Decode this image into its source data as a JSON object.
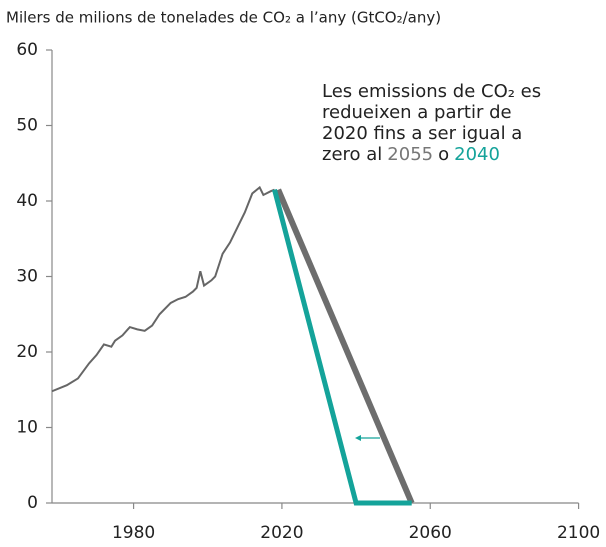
{
  "chart_data": {
    "type": "line",
    "title": "Milers de milions de tonelades de CO₂ a l’any (GtCO₂/any)",
    "annotation": {
      "lines": [
        "Les emissions de CO₂ es",
        "redueixen a partir de",
        "2020  fins a ser igual a"
      ],
      "last_line": [
        {
          "text": "zero al",
          "color": "#222222"
        },
        {
          "text": "2055",
          "color": "#777777"
        },
        {
          "text": "o",
          "color": "#222222"
        },
        {
          "text": "2040",
          "color": "#14a39a"
        }
      ]
    },
    "series": [
      {
        "color": "#666666",
        "line_width": 2,
        "x": [
          1958,
          1962,
          1965,
          1968,
          1970,
          1972,
          1974,
          1975,
          1977,
          1979,
          1981,
          1983,
          1985,
          1987,
          1990,
          1992,
          1994,
          1996,
          1997,
          1998,
          1999,
          2001,
          2002,
          2004,
          2006,
          2008,
          2010,
          2012,
          2014,
          2015,
          2017,
          2018
        ],
        "values": [
          14.8,
          15.6,
          16.5,
          18.5,
          19.6,
          21,
          20.7,
          21.5,
          22.2,
          23.3,
          23,
          22.8,
          23.5,
          25,
          26.5,
          27,
          27.3,
          28,
          28.5,
          30.7,
          28.8,
          29.5,
          30,
          33,
          34.5,
          36.5,
          38.5,
          41,
          41.8,
          40.8,
          41.3,
          41.5
        ]
      },
      {
        "color": "#6d6d6d",
        "line_width": 6,
        "x": [
          2019,
          2055
        ],
        "values": [
          41.5,
          0
        ]
      },
      {
        "color": "#14a39a",
        "line_width": 5,
        "x": [
          2018,
          2040,
          2055
        ],
        "values": [
          41.5,
          0,
          0
        ]
      }
    ],
    "xlim": [
      1958,
      2100
    ],
    "ylim": [
      0,
      60
    ],
    "xticks": [
      1980,
      2020,
      2060,
      2100
    ],
    "yticks": [
      0,
      10,
      20,
      30,
      40,
      50,
      60
    ]
  }
}
